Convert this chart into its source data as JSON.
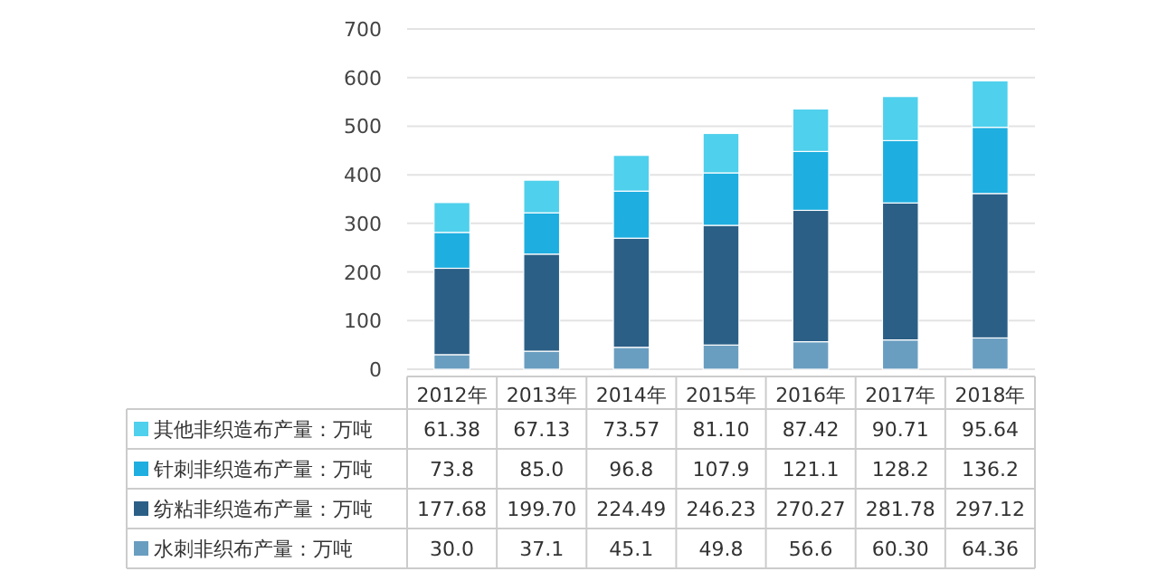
{
  "chart_data": {
    "type": "bar",
    "stacked": true,
    "categories": [
      "2012年",
      "2013年",
      "2014年",
      "2015年",
      "2016年",
      "2017年",
      "2018年"
    ],
    "series": [
      {
        "name": "水刺非织布产量：万吨",
        "color": "#6a9ec0",
        "values": [
          30.0,
          37.1,
          45.1,
          49.8,
          56.6,
          60.3,
          64.36
        ],
        "value_labels": [
          "30.0",
          "37.1",
          "45.1",
          "49.8",
          "56.6",
          "60.30",
          "64.36"
        ]
      },
      {
        "name": "纺粘非织造布产量：万吨",
        "color": "#2b5f86",
        "values": [
          177.68,
          199.7,
          224.49,
          246.23,
          270.27,
          281.78,
          297.12
        ],
        "value_labels": [
          "177.68",
          "199.70",
          "224.49",
          "246.23",
          "270.27",
          "281.78",
          "297.12"
        ]
      },
      {
        "name": "针刺非织造布产量：万吨",
        "color": "#1eaee0",
        "values": [
          73.8,
          85.0,
          96.8,
          107.9,
          121.1,
          128.2,
          136.2
        ],
        "value_labels": [
          "73.8",
          "85.0",
          "96.8",
          "107.9",
          "121.1",
          "128.2",
          "136.2"
        ]
      },
      {
        "name": "其他非织造布产量：万吨",
        "color": "#4fd0ec",
        "values": [
          61.38,
          67.13,
          73.57,
          81.1,
          87.42,
          90.71,
          95.64
        ],
        "value_labels": [
          "61.38",
          "67.13",
          "73.57",
          "81.10",
          "87.42",
          "90.71",
          "95.64"
        ]
      }
    ],
    "ylim": [
      0,
      700
    ],
    "yticks": [
      0,
      100,
      200,
      300,
      400,
      500,
      600,
      700
    ],
    "grid": "y",
    "legend": "bottom"
  }
}
